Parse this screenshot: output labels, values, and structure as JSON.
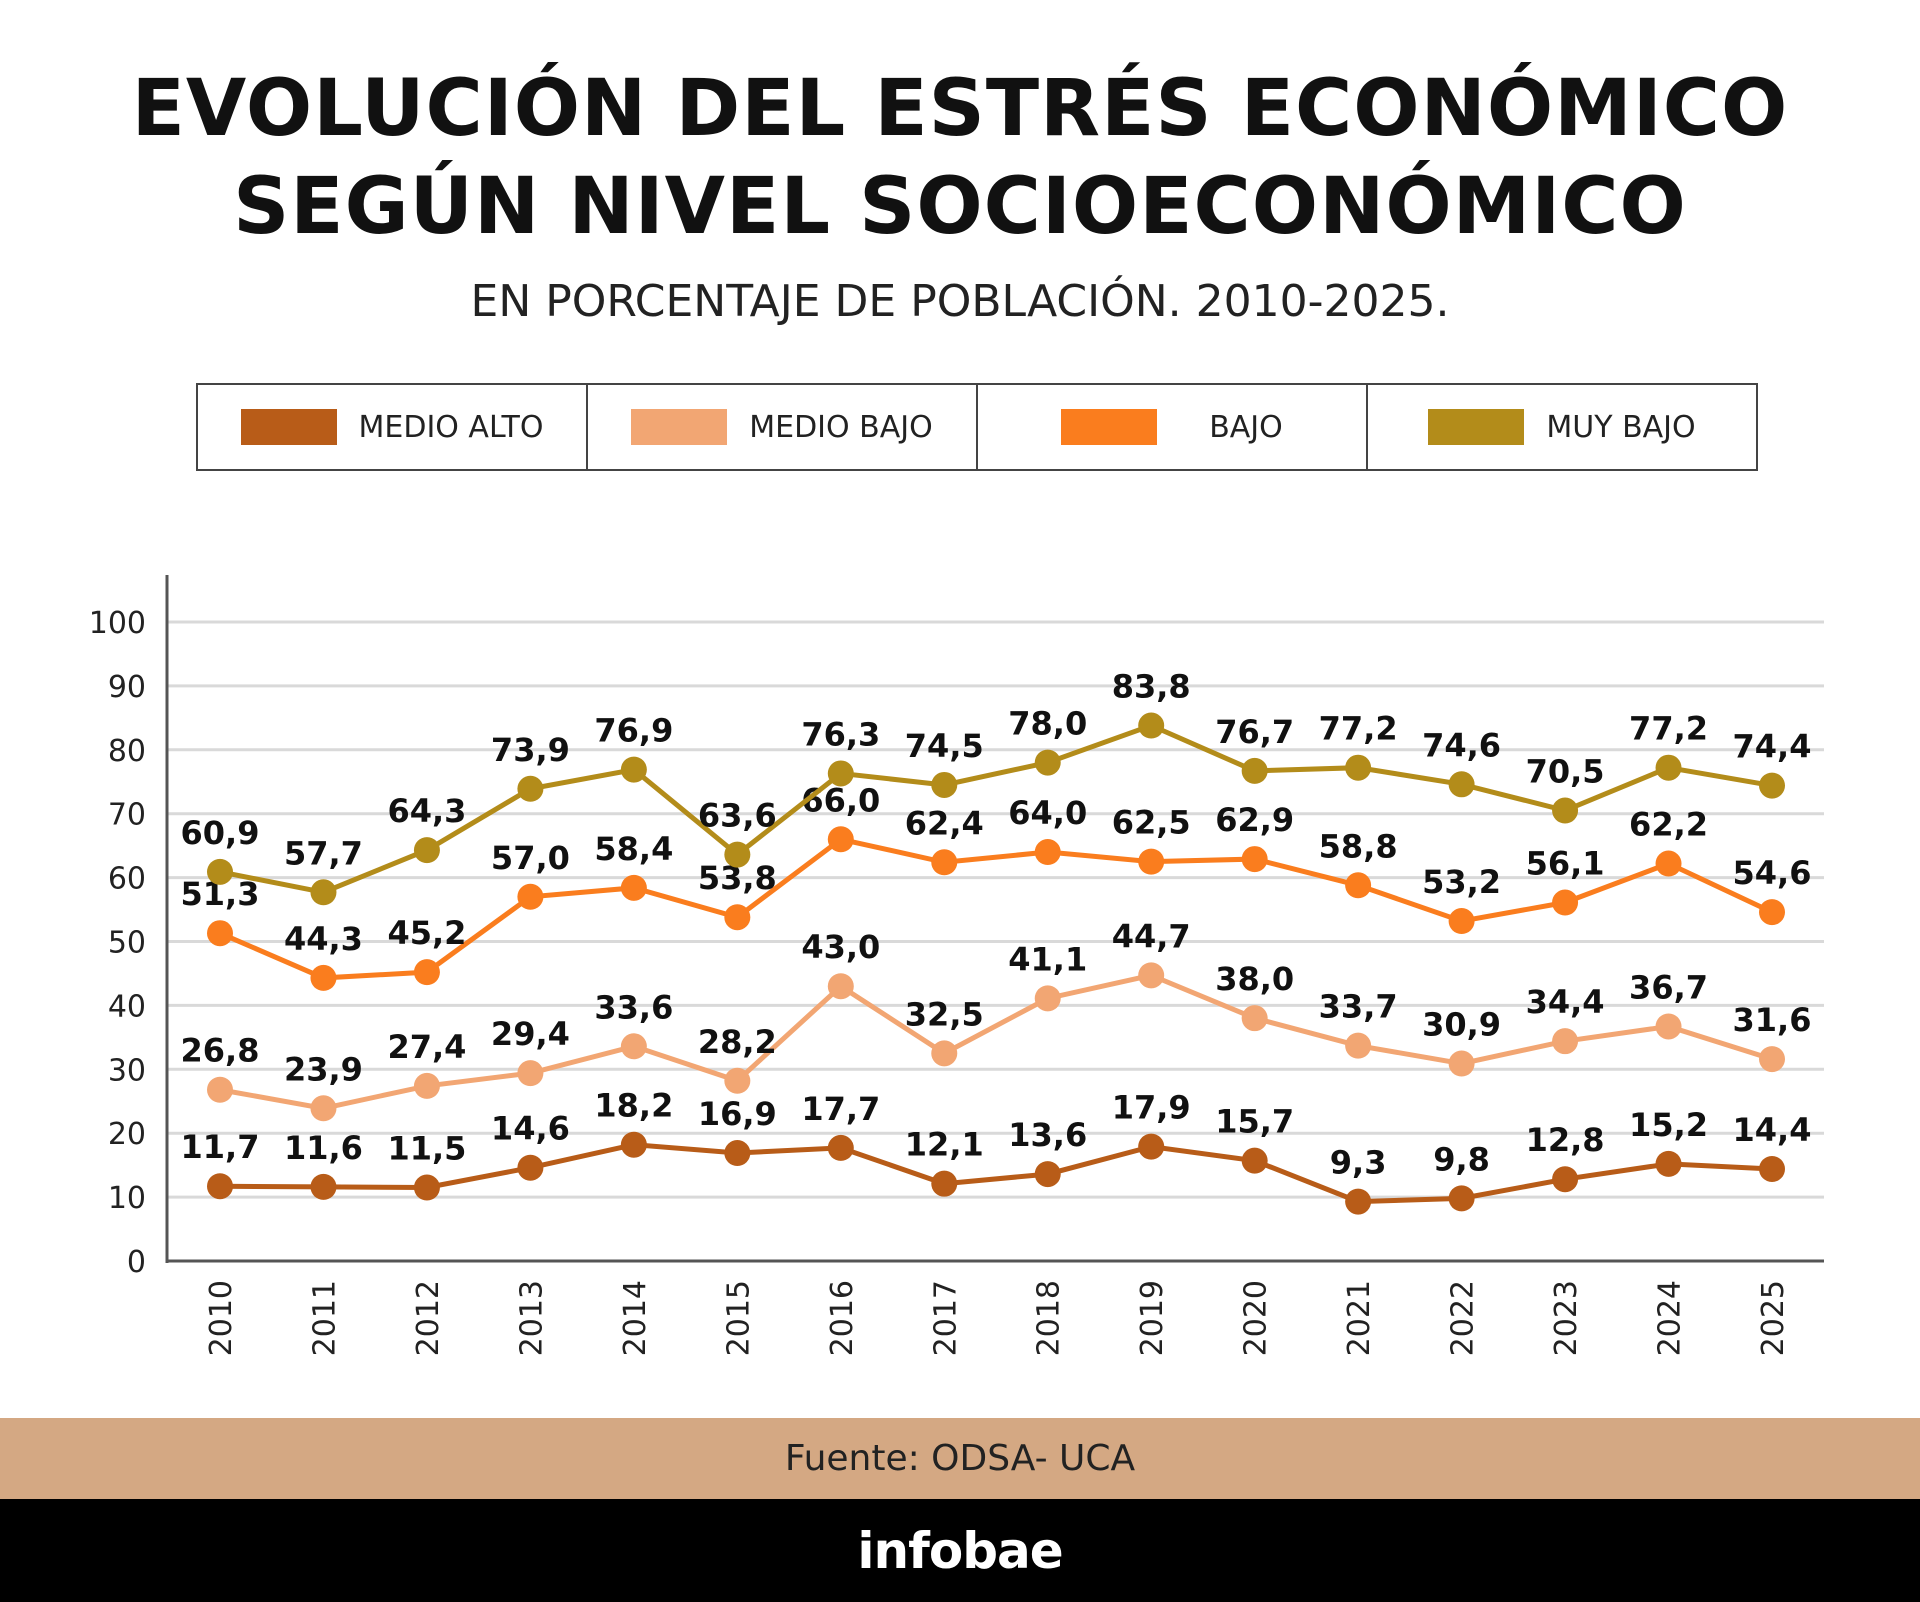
{
  "chart_data": {
    "type": "line",
    "title": "EVOLUCIÓN DEL ESTRÉS ECONÓMICO SEGÚN NIVEL SOCIOECONÓMICO",
    "title_lines": [
      "EVOLUCIÓN DEL ESTRÉS ECONÓMICO",
      "SEGÚN NIVEL SOCIOECONÓMICO"
    ],
    "subtitle": "EN PORCENTAJE DE POBLACIÓN. 2010-2025.",
    "x": [
      "2010",
      "2011",
      "2012",
      "2013",
      "2014",
      "2015",
      "2016",
      "2017",
      "2018",
      "2019",
      "2020",
      "2021",
      "2022",
      "2023",
      "2024",
      "2025"
    ],
    "ylim": [
      0,
      100
    ],
    "yticks": [
      0,
      10,
      20,
      30,
      40,
      50,
      60,
      70,
      80,
      90,
      100
    ],
    "grid": true,
    "legend_placement": "top",
    "series": [
      {
        "name": "MEDIO ALTO",
        "color": "#b85c18",
        "values": [
          11.7,
          11.6,
          11.5,
          14.6,
          18.2,
          16.9,
          17.7,
          12.1,
          13.6,
          17.9,
          15.7,
          9.3,
          9.8,
          12.8,
          15.2,
          14.4
        ],
        "labels": [
          "11,7",
          "11,6",
          "11,5",
          "14,6",
          "18,2",
          "16,9",
          "17,7",
          "12,1",
          "13,6",
          "17,9",
          "15,7",
          "9,3",
          "9,8",
          "12,8",
          "15,2",
          "14,4"
        ]
      },
      {
        "name": "MEDIO BAJO",
        "color": "#f2a673",
        "values": [
          26.8,
          23.9,
          27.4,
          29.4,
          33.6,
          28.2,
          43.0,
          32.5,
          41.1,
          44.7,
          38.0,
          33.7,
          30.9,
          34.4,
          36.7,
          31.6
        ],
        "labels": [
          "26,8",
          "23,9",
          "27,4",
          "29,4",
          "33,6",
          "28,2",
          "43,0",
          "32,5",
          "41,1",
          "44,7",
          "38,0",
          "33,7",
          "30,9",
          "34,4",
          "36,7",
          "31,6"
        ]
      },
      {
        "name": "BAJO",
        "color": "#fa7d1e",
        "values": [
          51.3,
          44.3,
          45.2,
          57.0,
          58.4,
          53.8,
          66.0,
          62.4,
          64.0,
          62.5,
          62.9,
          58.8,
          53.2,
          56.1,
          62.2,
          54.6
        ],
        "labels": [
          "51,3",
          "44,3",
          "45,2",
          "57,0",
          "58,4",
          "53,8",
          "66,0",
          "62,4",
          "64,0",
          "62,5",
          "62,9",
          "58,8",
          "53,2",
          "56,1",
          "62,2",
          "54,6"
        ]
      },
      {
        "name": "MUY BAJO",
        "color": "#b38c1a",
        "values": [
          60.9,
          57.7,
          64.3,
          73.9,
          76.9,
          63.6,
          76.3,
          74.5,
          78.0,
          83.8,
          76.7,
          77.2,
          74.6,
          70.5,
          77.2,
          74.4
        ],
        "labels": [
          "60,9",
          "57,7",
          "64,3",
          "73,9",
          "76,9",
          "63,6",
          "76,3",
          "74,5",
          "78,0",
          "83,8",
          "76,7",
          "77,2",
          "74,6",
          "70,5",
          "77,2",
          "74,4"
        ]
      }
    ]
  },
  "source": "Fuente:  ODSA- UCA",
  "brand": "infobae"
}
